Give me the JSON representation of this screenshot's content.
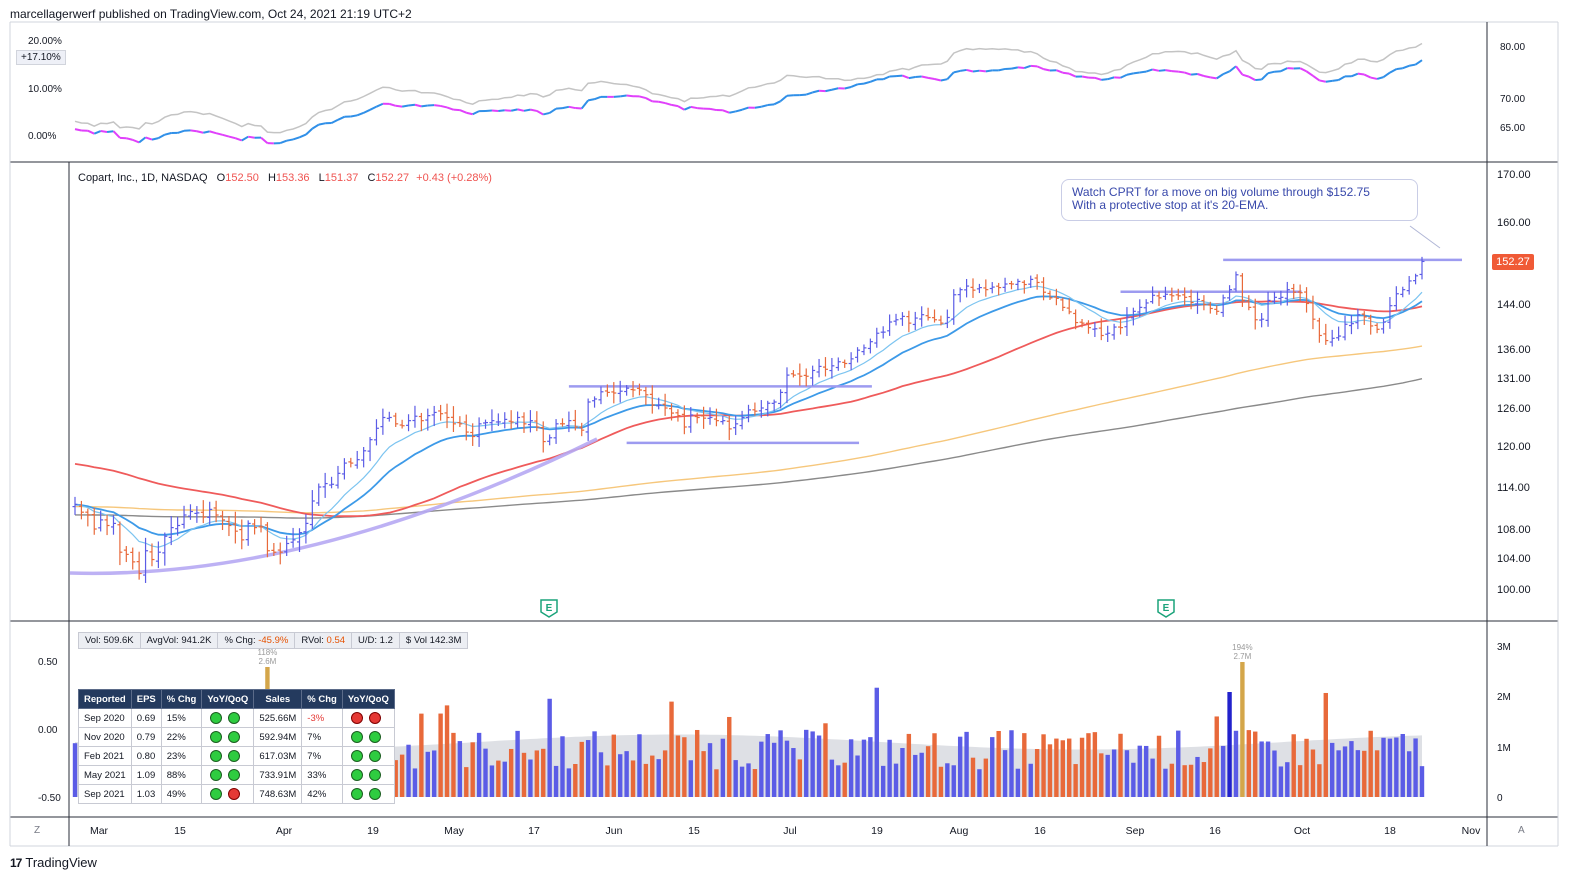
{
  "header": {
    "publisher_text": "marcellagerwerf published on TradingView.com, Oct 24, 2021 21:19 UTC+2"
  },
  "rs_pane": {
    "left_ticks": [
      "20.00%",
      "10.00%",
      "0.00%"
    ],
    "right_ticks": [
      "80.00",
      "70.00",
      "65.00"
    ],
    "current_tag": "+17.10%"
  },
  "legend": {
    "symbol": "Copart, Inc., 1D, NASDAQ",
    "open_label": "O",
    "open": "152.50",
    "high_label": "H",
    "high": "153.36",
    "low_label": "L",
    "low": "151.37",
    "close_label": "C",
    "close": "152.27",
    "change": "+0.43 (+0.28%)"
  },
  "annotation": {
    "line1": "Watch CPRT for a move on big volume through $152.75",
    "line2": "With a protective stop at it's 20-EMA."
  },
  "price_axis": {
    "ticks": [
      "170.00",
      "160.00",
      "144.00",
      "136.00",
      "131.00",
      "126.00",
      "120.00",
      "114.00",
      "108.00",
      "104.00",
      "100.00"
    ],
    "last_price": "152.27"
  },
  "earnings_marker": "E",
  "volume_stats": {
    "vol_label": "Vol:",
    "vol": "509.6K",
    "avg_label": "AvgVol:",
    "avg": "941.2K",
    "chg_label": "% Chg:",
    "chg": "-45.9%",
    "rvol_label": "RVol:",
    "rvol": "0.54",
    "ud_label": "U/D:",
    "ud": "1.2",
    "dvol_label": "$ Vol",
    "dvol": "142.3M"
  },
  "volume_left_ticks": [
    "0.50",
    "0.00",
    "-0.50"
  ],
  "volume_right_ticks": [
    "3M",
    "2M",
    "1M",
    "0"
  ],
  "volume_spikes": [
    {
      "pct": "118%",
      "val": "2.6M"
    },
    {
      "pct": "194%",
      "val": "2.7M"
    }
  ],
  "earnings_table": {
    "headers": [
      "Reported",
      "EPS",
      "% Chg",
      "YoY/QoQ",
      "Sales",
      "% Chg",
      "YoY/QoQ"
    ],
    "rows": [
      {
        "reported": "Sep 2020",
        "eps": "0.69",
        "eps_chg": "15%",
        "eps_dots": [
          "g",
          "g"
        ],
        "sales": "525.66M",
        "sales_chg": "-3%",
        "sales_dots": [
          "r",
          "r"
        ]
      },
      {
        "reported": "Nov 2020",
        "eps": "0.79",
        "eps_chg": "22%",
        "eps_dots": [
          "g",
          "g"
        ],
        "sales": "592.94M",
        "sales_chg": "7%",
        "sales_dots": [
          "g",
          "g"
        ]
      },
      {
        "reported": "Feb 2021",
        "eps": "0.80",
        "eps_chg": "23%",
        "eps_dots": [
          "g",
          "g"
        ],
        "sales": "617.03M",
        "sales_chg": "7%",
        "sales_dots": [
          "g",
          "g"
        ]
      },
      {
        "reported": "May 2021",
        "eps": "1.09",
        "eps_chg": "88%",
        "eps_dots": [
          "g",
          "g"
        ],
        "sales": "733.91M",
        "sales_chg": "33%",
        "sales_dots": [
          "g",
          "g"
        ]
      },
      {
        "reported": "Sep 2021",
        "eps": "1.03",
        "eps_chg": "49%",
        "eps_dots": [
          "g",
          "r"
        ],
        "sales": "748.63M",
        "sales_chg": "42%",
        "sales_dots": [
          "g",
          "g"
        ]
      }
    ]
  },
  "time_axis": [
    "Mar",
    "15",
    "Apr",
    "19",
    "May",
    "17",
    "Jun",
    "15",
    "Jul",
    "19",
    "Aug",
    "16",
    "Sep",
    "16",
    "Oct",
    "18",
    "Nov"
  ],
  "corner_left": "Z",
  "corner_right": "A",
  "footer": {
    "brand": "TradingView",
    "mark": "17"
  },
  "colors": {
    "up_bar": "#5b5ce6",
    "down_bar": "#e8693a",
    "ema10": "#7cc4f0",
    "ema20": "#3d9ae8",
    "sma50": "#ef5b5b",
    "sma150": "#f6c77c",
    "sma200": "#8a8a8a",
    "levels": "#9d9bf0"
  },
  "chart_data": {
    "type": "line",
    "title": "Copart, Inc., 1D, NASDAQ",
    "ylim": [
      98,
      172
    ],
    "ylabel": "",
    "x_start": "Mar",
    "x_end": "Nov",
    "closes": [
      111.5,
      110.4,
      110,
      108,
      109.3,
      108.5,
      108.8,
      104.8,
      104.5,
      103.5,
      102,
      105,
      103.8,
      104.8,
      107,
      108.2,
      108.5,
      110,
      110.5,
      110.3,
      109.7,
      110.8,
      110,
      109.3,
      108.5,
      107.7,
      106.5,
      108.8,
      108.2,
      108.3,
      105,
      104.8,
      104.8,
      106,
      106.5,
      107.5,
      108.8,
      112,
      114,
      114.5,
      114.4,
      116,
      117.5,
      117.5,
      118,
      119.3,
      121,
      122.8,
      124.5,
      124.5,
      123.5,
      123.2,
      124,
      124.7,
      124,
      124.8,
      125.3,
      125.1,
      124.5,
      123.5,
      123.5,
      122.2,
      121.5,
      123.5,
      123.7,
      124,
      123.8,
      124.2,
      123.8,
      124.5,
      123.5,
      124,
      123,
      120.7,
      121.3,
      123.5,
      123.5,
      124,
      123,
      122.5,
      127,
      127.5,
      128.7,
      128.6,
      128.5,
      128.8,
      129.3,
      129,
      129,
      128.2,
      126.5,
      126.5,
      126,
      125.2,
      124.8,
      123,
      124.9,
      124.5,
      124.4,
      124.5,
      124,
      124,
      122.7,
      123.5,
      124.5,
      125.7,
      125.5,
      126,
      126.8,
      127,
      128.6,
      131.5,
      131.5,
      131.3,
      131.3,
      132.3,
      133,
      132.5,
      133.1,
      133.8,
      133.5,
      134.3,
      135.8,
      136.2,
      137.3,
      138.8,
      139,
      140.8,
      141.2,
      141.8,
      140.6,
      141.5,
      142.1,
      141.6,
      141.2,
      140.6,
      141.6,
      145.8,
      146.8,
      147.5,
      146.7,
      147.2,
      146.8,
      147.3,
      147.2,
      147.9,
      147.9,
      148.4,
      147.8,
      148.8,
      148.2,
      146.3,
      145.2,
      145.1,
      143.4,
      142.6,
      140.7,
      140.6,
      139.8,
      139.6,
      138.4,
      138.8,
      139.9,
      139.8,
      141.7,
      142.7,
      143.4,
      144.2,
      145.7,
      145.2,
      145.9,
      145.6,
      145.6,
      145.3,
      144.3,
      144.9,
      143.9,
      143.2,
      142.7,
      145.2,
      146.8,
      149.7,
      144.7,
      143.4,
      141.2,
      141.3,
      144.7,
      145.3,
      145.3,
      146.8,
      146.3,
      146.2,
      144.1,
      141.3,
      138.4,
      137.5,
      137.9,
      138.3,
      140.4,
      140.5,
      142.1,
      141.7,
      140.1,
      139.5,
      140.8,
      143.7,
      146,
      146.8,
      148.5,
      149.5,
      152.3
    ],
    "levels": [
      {
        "y": 129.6,
        "from_day": 77,
        "to_day": 118,
        "label": ""
      },
      {
        "y": 120.5,
        "from_day": 86,
        "to_day": 116,
        "label": ""
      },
      {
        "y": 146.4,
        "from_day": 163,
        "to_day": 185,
        "label": ""
      },
      {
        "y": 152.6,
        "from_day": 179,
        "to_day": 210,
        "label": ""
      }
    ]
  }
}
